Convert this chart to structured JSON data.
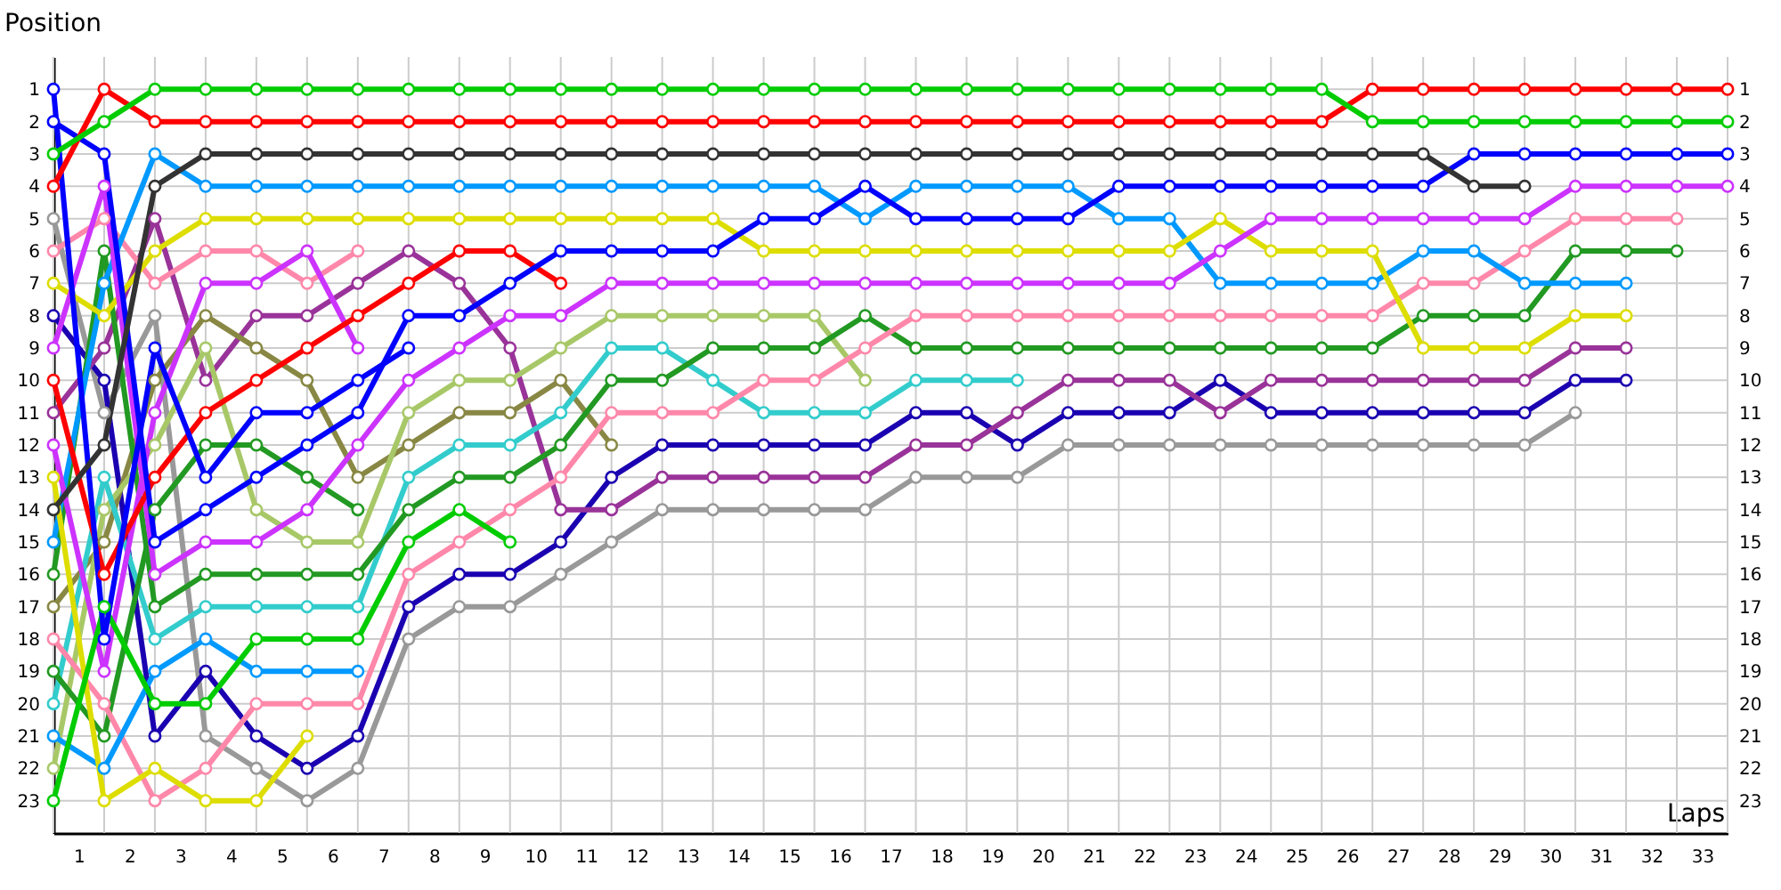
{
  "chart_data": {
    "type": "line",
    "xlabel": "Laps",
    "ylabel": "Position",
    "marker": "circle",
    "grid": true,
    "x": [
      0,
      1,
      2,
      3,
      4,
      5,
      6,
      7,
      8,
      9,
      10,
      11,
      12,
      13,
      14,
      15,
      16,
      17,
      18,
      19,
      20,
      21,
      22,
      23,
      24,
      25,
      26,
      27,
      28,
      29,
      30,
      31,
      32,
      33
    ],
    "xlim": [
      0,
      33
    ],
    "xticks": [
      {
        "value": 0,
        "label": null
      },
      {
        "value": 0.5,
        "label": "1"
      },
      {
        "value": 1,
        "label": null
      },
      {
        "value": 1.5,
        "label": "2"
      },
      {
        "value": 2,
        "label": null
      },
      {
        "value": 2.5,
        "label": "3"
      },
      {
        "value": 3,
        "label": null
      },
      {
        "value": 3.5,
        "label": "4"
      },
      {
        "value": 4,
        "label": null
      },
      {
        "value": 4.5,
        "label": "5"
      },
      {
        "value": 5,
        "label": null
      },
      {
        "value": 5.5,
        "label": "6"
      },
      {
        "value": 6,
        "label": null
      },
      {
        "value": 6.5,
        "label": "7"
      },
      {
        "value": 7,
        "label": null
      },
      {
        "value": 7.5,
        "label": "8"
      },
      {
        "value": 8,
        "label": null
      },
      {
        "value": 8.5,
        "label": "9"
      },
      {
        "value": 9,
        "label": null
      },
      {
        "value": 9.5,
        "label": "10"
      },
      {
        "value": 10,
        "label": null
      },
      {
        "value": 10.5,
        "label": "11"
      },
      {
        "value": 11,
        "label": null
      },
      {
        "value": 11.5,
        "label": "12"
      },
      {
        "value": 12,
        "label": null
      },
      {
        "value": 12.5,
        "label": "13"
      },
      {
        "value": 13,
        "label": null
      },
      {
        "value": 13.5,
        "label": "14"
      },
      {
        "value": 14,
        "label": null
      },
      {
        "value": 14.5,
        "label": "15"
      },
      {
        "value": 15,
        "label": null
      },
      {
        "value": 15.5,
        "label": "16"
      },
      {
        "value": 16,
        "label": null
      },
      {
        "value": 16.5,
        "label": "17"
      },
      {
        "value": 17,
        "label": null
      },
      {
        "value": 17.5,
        "label": "18"
      },
      {
        "value": 18,
        "label": null
      },
      {
        "value": 18.5,
        "label": "19"
      },
      {
        "value": 19,
        "label": null
      },
      {
        "value": 19.5,
        "label": "20"
      },
      {
        "value": 20,
        "label": null
      },
      {
        "value": 20.5,
        "label": "21"
      },
      {
        "value": 21,
        "label": null
      },
      {
        "value": 21.5,
        "label": "22"
      },
      {
        "value": 22,
        "label": null
      },
      {
        "value": 22.5,
        "label": "23"
      },
      {
        "value": 23,
        "label": null
      },
      {
        "value": 23.5,
        "label": "24"
      },
      {
        "value": 24,
        "label": null
      },
      {
        "value": 24.5,
        "label": "25"
      },
      {
        "value": 25,
        "label": null
      },
      {
        "value": 25.5,
        "label": "26"
      },
      {
        "value": 26,
        "label": null
      },
      {
        "value": 26.5,
        "label": "27"
      },
      {
        "value": 27,
        "label": null
      },
      {
        "value": 27.5,
        "label": "28"
      },
      {
        "value": 28,
        "label": null
      },
      {
        "value": 28.5,
        "label": "29"
      },
      {
        "value": 29,
        "label": null
      },
      {
        "value": 29.5,
        "label": "30"
      },
      {
        "value": 30,
        "label": null
      },
      {
        "value": 30.5,
        "label": "31"
      },
      {
        "value": 31,
        "label": null
      },
      {
        "value": 31.5,
        "label": "32"
      },
      {
        "value": 32,
        "label": null
      },
      {
        "value": 32.5,
        "label": "33"
      },
      {
        "value": 33,
        "label": null
      }
    ],
    "ylim": [
      24,
      0
    ],
    "yticks": [
      1,
      2,
      3,
      4,
      5,
      6,
      7,
      8,
      9,
      10,
      11,
      12,
      13,
      14,
      15,
      16,
      17,
      18,
      19,
      20,
      21,
      22,
      23
    ],
    "y2lim": [
      24,
      0
    ],
    "y2ticks": [
      1,
      2,
      3,
      4,
      5,
      6,
      7,
      8,
      9,
      10,
      11,
      12,
      13,
      14,
      15,
      16,
      17,
      18,
      19,
      20,
      21,
      22,
      23
    ],
    "series": [
      {
        "color": "#999999",
        "values": [
          5,
          11,
          8,
          21,
          22,
          23,
          22,
          18,
          17,
          17,
          16,
          15,
          14,
          14,
          14,
          14,
          14,
          13,
          13,
          13,
          12,
          12,
          12,
          12,
          12,
          12,
          12,
          12,
          12,
          12,
          11,
          null,
          null,
          null
        ]
      },
      {
        "color": "#1a00b0",
        "values": [
          8,
          10,
          21,
          19,
          21,
          22,
          21,
          17,
          16,
          16,
          15,
          13,
          12,
          12,
          12,
          12,
          12,
          11,
          11,
          12,
          11,
          11,
          11,
          10,
          11,
          11,
          11,
          11,
          11,
          11,
          10,
          10,
          null,
          null
        ]
      },
      {
        "color": "#993399",
        "values": [
          11,
          9,
          5,
          10,
          8,
          8,
          7,
          6,
          7,
          9,
          14,
          14,
          13,
          13,
          13,
          13,
          13,
          12,
          12,
          11,
          10,
          10,
          10,
          11,
          10,
          10,
          10,
          10,
          10,
          10,
          9,
          9,
          null,
          null
        ]
      },
      {
        "color": "#888844",
        "values": [
          17,
          15,
          10,
          8,
          9,
          10,
          13,
          12,
          11,
          11,
          10,
          12,
          null,
          null,
          null,
          null,
          null,
          null,
          null,
          null,
          null,
          null,
          null,
          null,
          null,
          null,
          null,
          null,
          null,
          null,
          null,
          null,
          null,
          null
        ]
      },
      {
        "color": "#a8c868",
        "values": [
          22,
          14,
          12,
          9,
          14,
          15,
          15,
          11,
          10,
          10,
          9,
          8,
          8,
          8,
          8,
          8,
          10,
          null,
          null,
          null,
          null,
          null,
          null,
          null,
          null,
          null,
          null,
          null,
          null,
          null,
          null,
          null,
          null,
          null
        ]
      },
      {
        "color": "#33cccc",
        "values": [
          20,
          13,
          18,
          17,
          17,
          17,
          17,
          13,
          12,
          12,
          11,
          9,
          9,
          10,
          11,
          11,
          11,
          10,
          10,
          10,
          null,
          null,
          null,
          null,
          null,
          null,
          null,
          null,
          null,
          null,
          null,
          null,
          null,
          null
        ]
      },
      {
        "color": "#229922",
        "values": [
          19,
          21,
          14,
          12,
          12,
          13,
          14,
          null,
          null,
          null,
          null,
          null,
          null,
          null,
          null,
          null,
          null,
          null,
          null,
          null,
          null,
          null,
          null,
          null,
          null,
          null,
          null,
          null,
          null,
          null,
          null,
          null,
          null,
          null
        ]
      },
      {
        "color": "#229922",
        "values": [
          16,
          6,
          17,
          16,
          16,
          16,
          16,
          14,
          13,
          13,
          12,
          10,
          10,
          9,
          9,
          9,
          8,
          9,
          9,
          9,
          9,
          9,
          9,
          9,
          9,
          9,
          9,
          8,
          8,
          8,
          6,
          6,
          6,
          null
        ]
      },
      {
        "color": "#ff88aa",
        "values": [
          6,
          5,
          7,
          6,
          6,
          7,
          6,
          null,
          null,
          null,
          null,
          null,
          null,
          null,
          null,
          null,
          null,
          null,
          null,
          null,
          null,
          null,
          null,
          null,
          null,
          null,
          null,
          null,
          null,
          null,
          null,
          null,
          null,
          null
        ]
      },
      {
        "color": "#ff88aa",
        "values": [
          18,
          20,
          23,
          22,
          20,
          20,
          20,
          16,
          15,
          14,
          13,
          11,
          11,
          11,
          10,
          10,
          9,
          8,
          8,
          8,
          8,
          8,
          8,
          8,
          8,
          8,
          8,
          7,
          7,
          6,
          5,
          5,
          5,
          null
        ]
      },
      {
        "color": "#0099ff",
        "values": [
          21,
          22,
          19,
          18,
          19,
          19,
          19,
          null,
          null,
          null,
          null,
          null,
          null,
          null,
          null,
          null,
          null,
          null,
          null,
          null,
          null,
          null,
          null,
          null,
          null,
          null,
          null,
          null,
          null,
          null,
          null,
          null,
          null,
          null
        ]
      },
      {
        "color": "#0099ff",
        "values": [
          15,
          7,
          3,
          4,
          4,
          4,
          4,
          4,
          4,
          4,
          4,
          4,
          4,
          4,
          4,
          4,
          5,
          4,
          4,
          4,
          4,
          5,
          5,
          7,
          7,
          7,
          7,
          6,
          6,
          7,
          7,
          7,
          null,
          null
        ]
      },
      {
        "color": "#dddd00",
        "values": [
          13,
          23,
          22,
          23,
          23,
          21,
          null,
          null,
          null,
          null,
          null,
          null,
          null,
          null,
          null,
          null,
          null,
          null,
          null,
          null,
          null,
          null,
          null,
          null,
          null,
          null,
          null,
          null,
          null,
          null,
          null,
          null,
          null,
          null
        ]
      },
      {
        "color": "#dddd00",
        "values": [
          7,
          8,
          6,
          5,
          5,
          5,
          5,
          5,
          5,
          5,
          5,
          5,
          5,
          5,
          6,
          6,
          6,
          6,
          6,
          6,
          6,
          6,
          6,
          5,
          6,
          6,
          6,
          9,
          9,
          9,
          8,
          8,
          null,
          null
        ]
      },
      {
        "color": "#cc33ff",
        "values": [
          12,
          19,
          11,
          7,
          7,
          6,
          9,
          null,
          null,
          null,
          null,
          null,
          null,
          null,
          null,
          null,
          null,
          null,
          null,
          null,
          null,
          null,
          null,
          null,
          null,
          null,
          null,
          null,
          null,
          null,
          null,
          null,
          null,
          null
        ]
      },
      {
        "color": "#cc33ff",
        "values": [
          9,
          4,
          16,
          15,
          15,
          14,
          12,
          10,
          9,
          8,
          8,
          7,
          7,
          7,
          7,
          7,
          7,
          7,
          7,
          7,
          7,
          7,
          7,
          6,
          5,
          5,
          5,
          5,
          5,
          5,
          4,
          4,
          4,
          4
        ]
      },
      {
        "color": "#00cc00",
        "values": [
          23,
          17,
          20,
          20,
          18,
          18,
          18,
          15,
          14,
          15,
          null,
          null,
          null,
          null,
          null,
          null,
          null,
          null,
          null,
          null,
          null,
          null,
          null,
          null,
          null,
          null,
          null,
          null,
          null,
          null,
          null,
          null,
          null,
          null
        ]
      },
      {
        "color": "#ff0000",
        "values": [
          10,
          16,
          13,
          11,
          10,
          9,
          8,
          7,
          6,
          6,
          7,
          null,
          null,
          null,
          null,
          null,
          null,
          null,
          null,
          null,
          null,
          null,
          null,
          null,
          null,
          null,
          null,
          null,
          null,
          null,
          null,
          null,
          null,
          null
        ]
      },
      {
        "color": "#0000ff",
        "values": [
          1,
          18,
          9,
          13,
          11,
          11,
          10,
          9,
          null,
          null,
          null,
          null,
          null,
          null,
          null,
          null,
          null,
          null,
          null,
          null,
          null,
          null,
          null,
          null,
          null,
          null,
          null,
          null,
          null,
          null,
          null,
          null,
          null,
          null
        ]
      },
      {
        "color": "#0000ff",
        "values": [
          2,
          3,
          15,
          14,
          13,
          12,
          11,
          8,
          8,
          7,
          6,
          6,
          6,
          6,
          5,
          5,
          4,
          5,
          5,
          5,
          5,
          4,
          4,
          4,
          4,
          4,
          4,
          4,
          3,
          3,
          3,
          3,
          3,
          3
        ]
      },
      {
        "color": "#333333",
        "values": [
          14,
          12,
          4,
          3,
          3,
          3,
          3,
          3,
          3,
          3,
          3,
          3,
          3,
          3,
          3,
          3,
          3,
          3,
          3,
          3,
          3,
          3,
          3,
          3,
          3,
          3,
          3,
          3,
          4,
          4,
          null,
          null,
          null,
          null
        ]
      },
      {
        "color": "#ff0000",
        "values": [
          4,
          1,
          2,
          2,
          2,
          2,
          2,
          2,
          2,
          2,
          2,
          2,
          2,
          2,
          2,
          2,
          2,
          2,
          2,
          2,
          2,
          2,
          2,
          2,
          2,
          2,
          1,
          1,
          1,
          1,
          1,
          1,
          1,
          1
        ]
      },
      {
        "color": "#00cc00",
        "values": [
          3,
          2,
          1,
          1,
          1,
          1,
          1,
          1,
          1,
          1,
          1,
          1,
          1,
          1,
          1,
          1,
          1,
          1,
          1,
          1,
          1,
          1,
          1,
          1,
          1,
          1,
          2,
          2,
          2,
          2,
          2,
          2,
          2,
          2
        ]
      }
    ]
  }
}
